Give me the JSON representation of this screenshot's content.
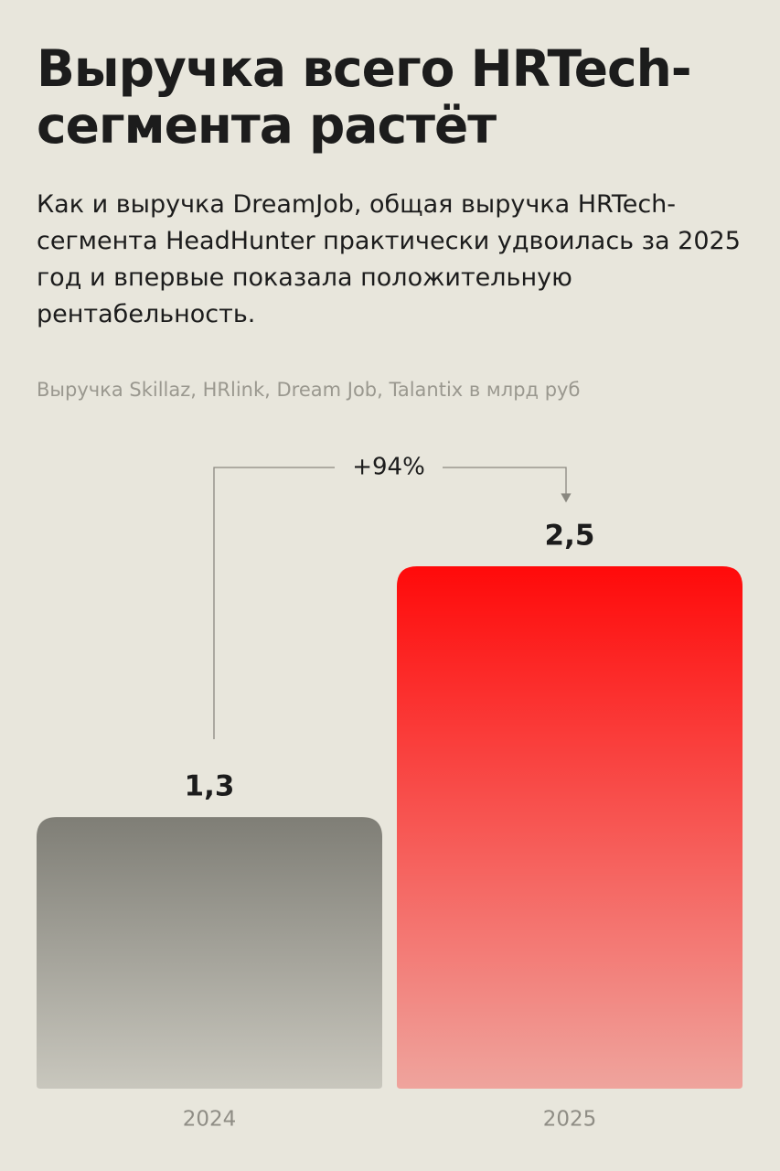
{
  "chart_data": {
    "type": "bar",
    "title": "Выручка всего HRTech-сегмента растёт",
    "subtitle": "Как и выручка DreamJob, общая выручка HRTech-сегмента HeadHunter практически удвоилась за 2025 год и впервые показала положительную рентабельность.",
    "unit_label": "Выручка Skillaz, HRlink, Dream Job, Talantix в млрд руб",
    "annotation": "+94%",
    "categories": [
      "2024",
      "2025"
    ],
    "values": [
      1.3,
      2.5
    ],
    "value_labels": [
      "1,3",
      "2,5"
    ],
    "colors": [
      "#7f7e76",
      "#ff0a0a"
    ]
  }
}
